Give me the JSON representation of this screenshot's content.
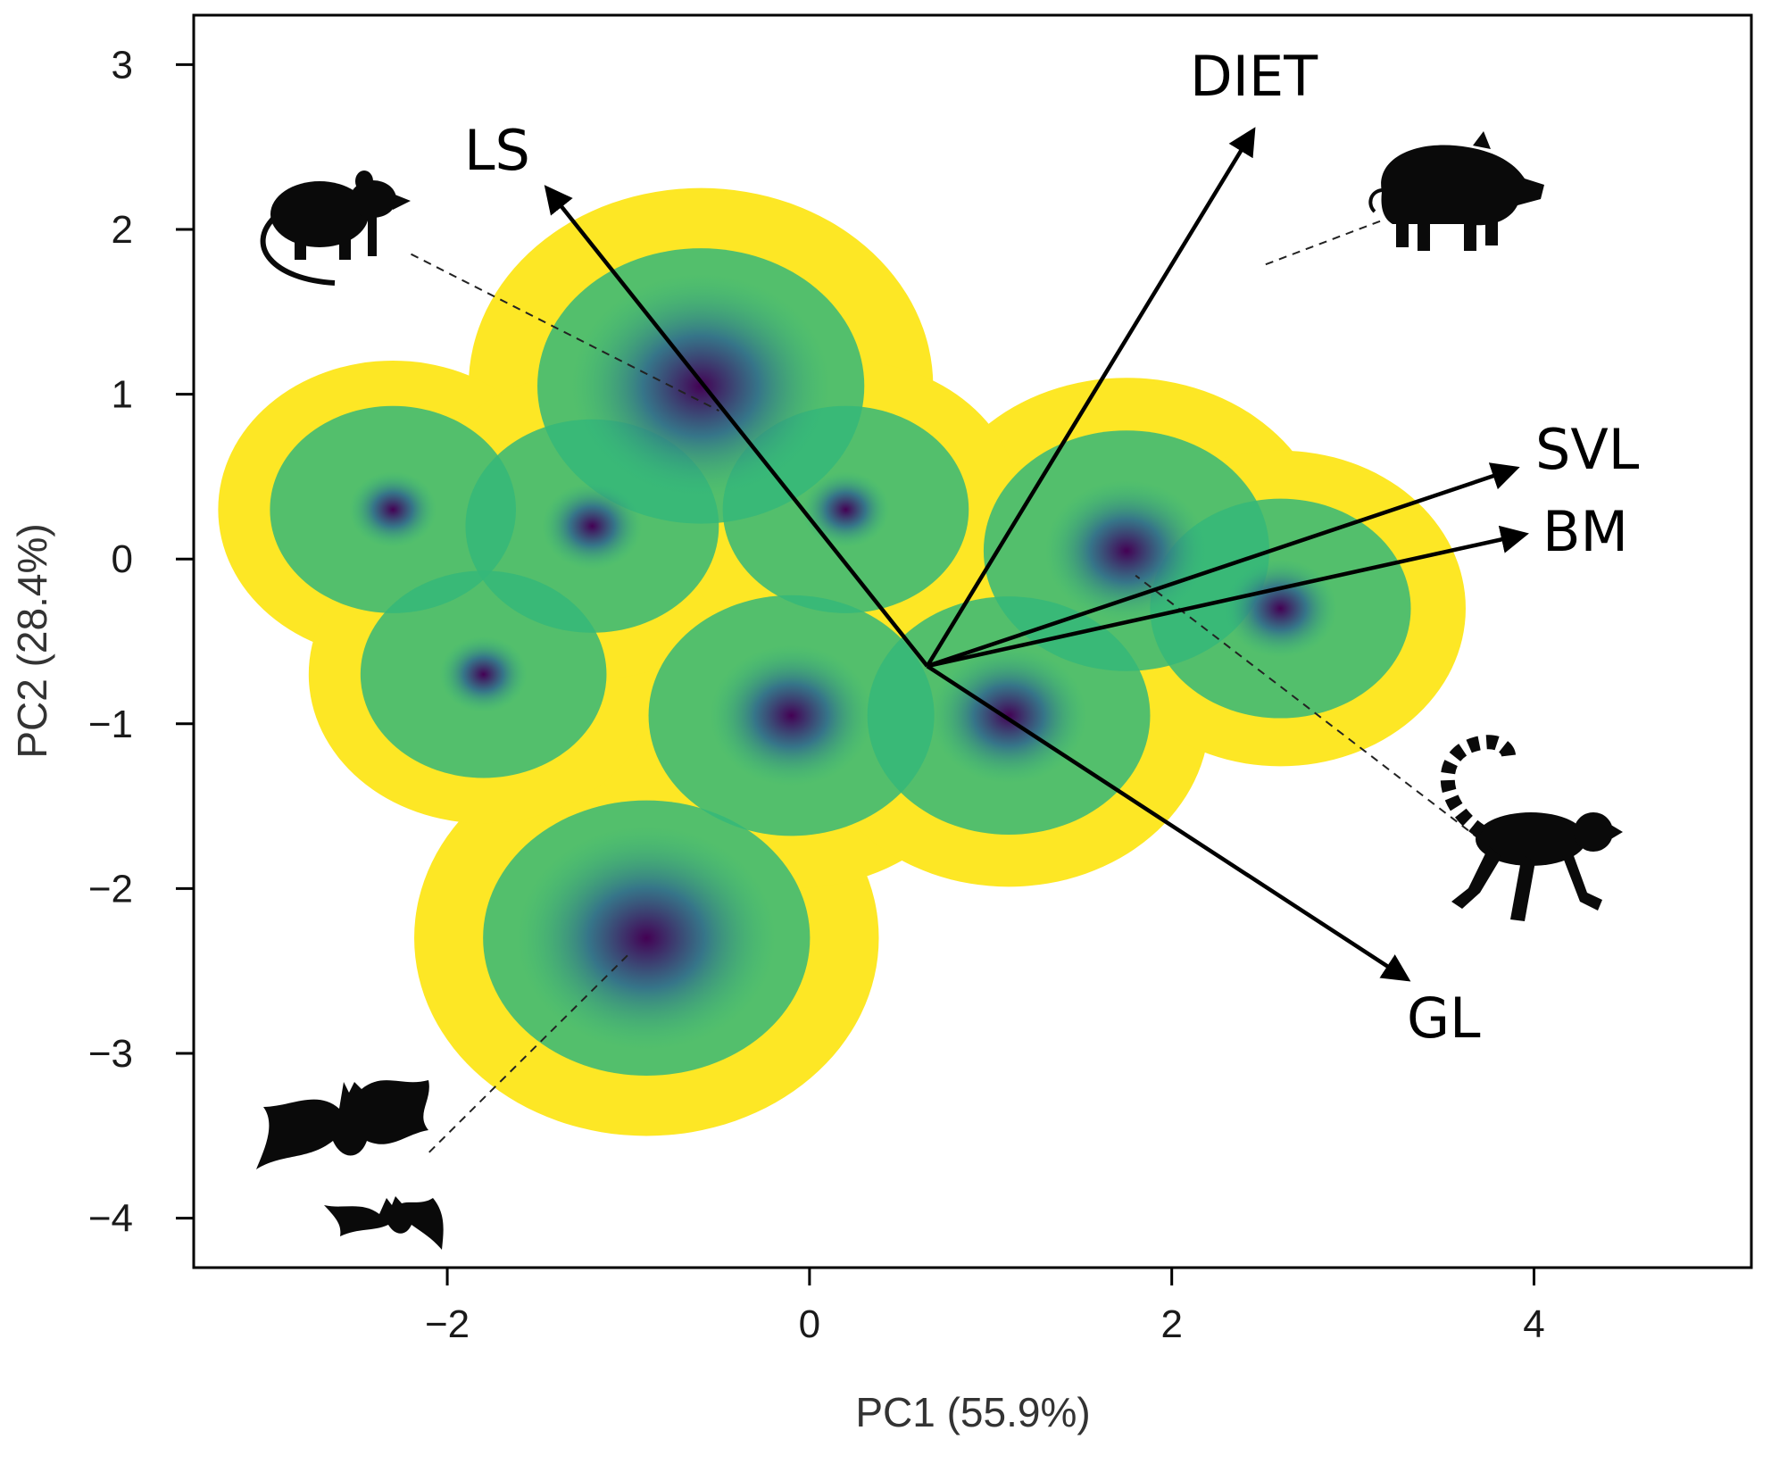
{
  "chart_data": {
    "type": "scatter",
    "subtype": "pca-biplot-with-density",
    "title": "",
    "xlabel": "PC1 (55.9%)",
    "ylabel": "PC2 (28.4%)",
    "xlim": [
      -3.4,
      5.2
    ],
    "ylim": [
      -4.3,
      3.3
    ],
    "x_ticks": [
      -2,
      0,
      2,
      4
    ],
    "x_tick_labels": [
      "−2",
      "0",
      "2",
      "4"
    ],
    "y_ticks": [
      -4,
      -3,
      -2,
      -1,
      0,
      1,
      2,
      3
    ],
    "y_tick_labels": [
      "−4",
      "−3",
      "−2",
      "−1",
      "0",
      "1",
      "2",
      "3"
    ],
    "grid": false,
    "legend": "none",
    "colormap": [
      "#fde725",
      "#b5de2b",
      "#35b779",
      "#21918c",
      "#31688e",
      "#443983",
      "#440154"
    ],
    "origin": [
      0.65,
      -0.65
    ],
    "loadings": [
      {
        "label": "LS",
        "x": -1.45,
        "y": 2.25
      },
      {
        "label": "DIET",
        "x": 2.45,
        "y": 2.6
      },
      {
        "label": "SVL",
        "x": 3.9,
        "y": 0.55
      },
      {
        "label": "BM",
        "x": 3.95,
        "y": 0.15
      },
      {
        "label": "GL",
        "x": 3.3,
        "y": -2.55
      }
    ],
    "density_peaks": [
      {
        "x": -0.6,
        "y": 1.05,
        "level": 1.0
      },
      {
        "x": -0.9,
        "y": -2.3,
        "level": 1.0
      },
      {
        "x": -0.1,
        "y": -0.95,
        "level": 0.72
      },
      {
        "x": 1.1,
        "y": -0.95,
        "level": 0.7
      },
      {
        "x": 1.75,
        "y": 0.05,
        "level": 0.72
      },
      {
        "x": 2.6,
        "y": -0.3,
        "level": 0.55
      },
      {
        "x": -2.3,
        "y": 0.3,
        "level": 0.45
      },
      {
        "x": -1.8,
        "y": -0.7,
        "level": 0.45
      },
      {
        "x": -1.2,
        "y": 0.2,
        "level": 0.5
      },
      {
        "x": 0.2,
        "y": 0.3,
        "level": 0.45
      }
    ],
    "annotations": [
      {
        "icon": "mouse-icon",
        "from": [
          -2.2,
          1.85
        ],
        "to": [
          -0.5,
          0.9
        ]
      },
      {
        "icon": "boar-icon",
        "from": [
          3.15,
          2.05
        ],
        "to": [
          2.5,
          1.78
        ]
      },
      {
        "icon": "lemur-icon",
        "from": [
          3.7,
          -1.7
        ],
        "to": [
          1.8,
          -0.1
        ]
      },
      {
        "icon": "bat-icon",
        "from": [
          -2.1,
          -3.6
        ],
        "to": [
          -1.0,
          -2.4
        ]
      }
    ]
  }
}
